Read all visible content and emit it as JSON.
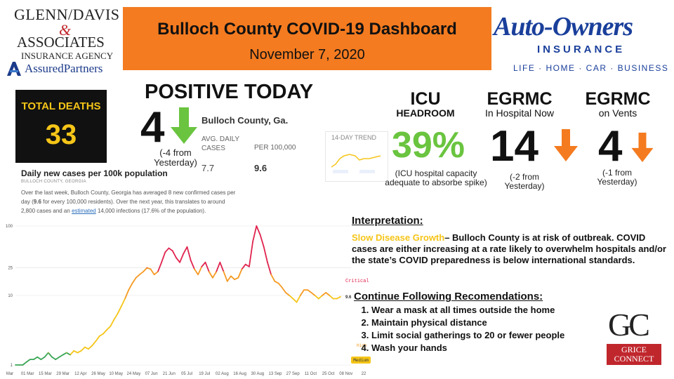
{
  "sponsor_left": {
    "line1": "Glenn/Davis",
    "amp": "&",
    "line2": "Associates",
    "line3": "Insurance Agency",
    "line4": "AssuredPartners"
  },
  "banner": {
    "title": "Bulloch County COVID-19 Dashboard",
    "date": "November 7, 2020",
    "color": "#f47b20"
  },
  "sponsor_right": {
    "name": "Auto-Owners",
    "sub": "INSURANCE",
    "tagline": "LIFE · HOME · CAR · BUSINESS",
    "color": "#1a3f9b"
  },
  "total_deaths": {
    "label": "TOTAL DEATHS",
    "value": "33"
  },
  "positive_today": {
    "title": "POSITIVE TODAY",
    "value": "4",
    "note": "(-4 from Yesterday)",
    "arrow": "green-down-arrow"
  },
  "county_card": {
    "heading": "Bulloch County, Ga.",
    "col1_label": "AVG. DAILY CASES",
    "col2_label": "PER 100,000",
    "col1_value": "7.7",
    "col2_value": "9.6"
  },
  "trend_card": {
    "label": "14-DAY TREND"
  },
  "icu": {
    "title": "ICU",
    "subtitle": "HEADROOM",
    "value": "39%",
    "note": "(ICU hospital capacity adequate to absorbe spike)",
    "color": "#6ac43f"
  },
  "egrmc_hospital": {
    "title": "EGRMC",
    "subtitle": "In Hospital Now",
    "value": "14",
    "note": "(-2  from Yesterday)",
    "arrow": "orange-down-arrow"
  },
  "egrmc_vents": {
    "title": "EGRMC",
    "subtitle": "on Vents",
    "value": "4",
    "note": "(-1 from Yesterday)",
    "arrow": "orange-down-arrow"
  },
  "chart_card": {
    "heading": "Daily new cases per 100k population",
    "subheading": "BULLOCH COUNTY, GEORGIA",
    "p1": "Over the last week, Bulloch County, Georgia has averaged 8 new confirmed cases per",
    "p2a": "day (",
    "p2b": "9.6",
    "p2c": " for every 100,000 residents). Over the next year, this translates to around",
    "p3a": "2,800 cases and an ",
    "p3link": "estimated",
    "p3b": " 14,000 infections (17.6% of the population)."
  },
  "chart_data": {
    "type": "line",
    "title": "Daily new cases per 100k population",
    "y_ticks": [
      "1",
      "10",
      "25",
      "100"
    ],
    "y_scale": "log",
    "ylim": [
      1,
      100
    ],
    "x_ticks": [
      "Mar",
      "01 Mar",
      "15 Mar",
      "29 Mar",
      "12 Apr",
      "26 May",
      "10 May",
      "24 May",
      "07 Jun",
      "21 Jun",
      "05 Jul",
      "19 Jul",
      "02 Aug",
      "16 Aug",
      "30 Aug",
      "13 Sep",
      "27 Sep",
      "11 Oct",
      "25 Oct",
      "08 Nov",
      "22"
    ],
    "threshold_labels": [
      "Critical",
      "High",
      "Medium"
    ],
    "current_value_label": "9.6",
    "levels": [
      {
        "name": "low",
        "color": "#3aa655"
      },
      {
        "name": "medium",
        "color": "#f5c518"
      },
      {
        "name": "high",
        "color": "#f59a23"
      },
      {
        "name": "critical",
        "color": "#e0234e"
      }
    ],
    "series": [
      {
        "values": [
          1,
          1,
          1,
          1.1,
          1.2,
          1.2,
          1.3,
          1.2,
          1.3,
          1.5,
          1.3,
          1.2,
          1.3,
          1.4,
          1.5,
          1.4,
          1.6,
          1.5,
          1.6,
          1.8,
          1.7,
          1.9,
          2.2,
          2.6,
          2.8,
          3.2,
          3.6,
          4.5,
          5.5,
          7,
          9,
          12,
          15,
          18,
          20,
          22,
          25,
          24,
          20,
          22,
          30,
          42,
          48,
          44,
          35,
          30,
          40,
          50,
          32,
          24,
          20,
          26,
          30,
          22,
          18,
          22,
          30,
          22,
          16,
          19,
          17,
          18,
          24,
          28,
          26,
          60,
          100,
          75,
          50,
          30,
          20,
          16,
          15,
          13,
          11,
          10,
          9,
          8,
          10,
          12,
          12,
          11,
          10,
          9,
          10,
          11,
          10,
          9,
          9,
          9.6
        ]
      }
    ]
  },
  "interpretation": {
    "heading": "Interpretation:",
    "level": "Slow Disease Growth",
    "text": "– Bulloch County is at risk of outbreak. COVID cases are either increasing at a rate likely to overwhelm hospitals and/or the state’s COVID preparedness is below international standards.",
    "level_color": "#f5c518"
  },
  "recommendations": {
    "heading": "Continue Following Recomendations:",
    "items": [
      "Wear a mask at all times outside the home",
      "Maintain physical distance",
      "Limit social gatherings to 20 or fewer people",
      "Wash your hands"
    ]
  },
  "grice": {
    "mark": "GC",
    "line1": "GRICE",
    "line2": "CONNECT"
  }
}
